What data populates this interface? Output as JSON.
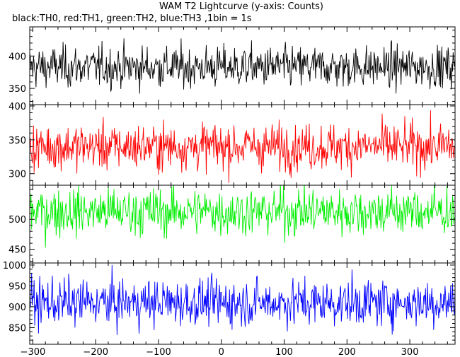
{
  "chart_data": {
    "type": "line",
    "title": "WAM T2 Lightcurve (y-axis: Counts)",
    "subtitle": "black:TH0, red:TH1, green:TH2, blue:TH3 ,1bin = 1s",
    "xlim": [
      -305,
      372
    ],
    "x_ticks": [
      "−300",
      "−200",
      "−100",
      "0",
      "100",
      "200",
      "300"
    ],
    "x_tick_values": [
      -300,
      -200,
      -100,
      0,
      100,
      200,
      300
    ],
    "panels": [
      {
        "series": "TH0",
        "color": "#000000",
        "ylim": [
          325,
          445
        ],
        "y_ticks": [
          "350",
          "400"
        ],
        "y_tick_values": [
          350,
          400
        ],
        "mean": 383,
        "sd": 16
      },
      {
        "series": "TH1",
        "color": "#ff0000",
        "ylim": [
          283,
          402
        ],
        "y_ticks": [
          "300",
          "350",
          "400"
        ],
        "y_tick_values": [
          300,
          350,
          400
        ],
        "mean": 340,
        "sd": 17
      },
      {
        "series": "TH2",
        "color": "#00ee00",
        "ylim": [
          427,
          557
        ],
        "y_ticks": [
          "450",
          "500"
        ],
        "y_tick_values": [
          450,
          500
        ],
        "mean": 513,
        "sd": 20
      },
      {
        "series": "TH3",
        "color": "#0000ff",
        "ylim": [
          810,
          1005
        ],
        "y_ticks": [
          "850",
          "900",
          "950",
          "1000"
        ],
        "y_tick_values": [
          850,
          900,
          950,
          1000
        ],
        "mean": 910,
        "sd": 28
      }
    ]
  }
}
